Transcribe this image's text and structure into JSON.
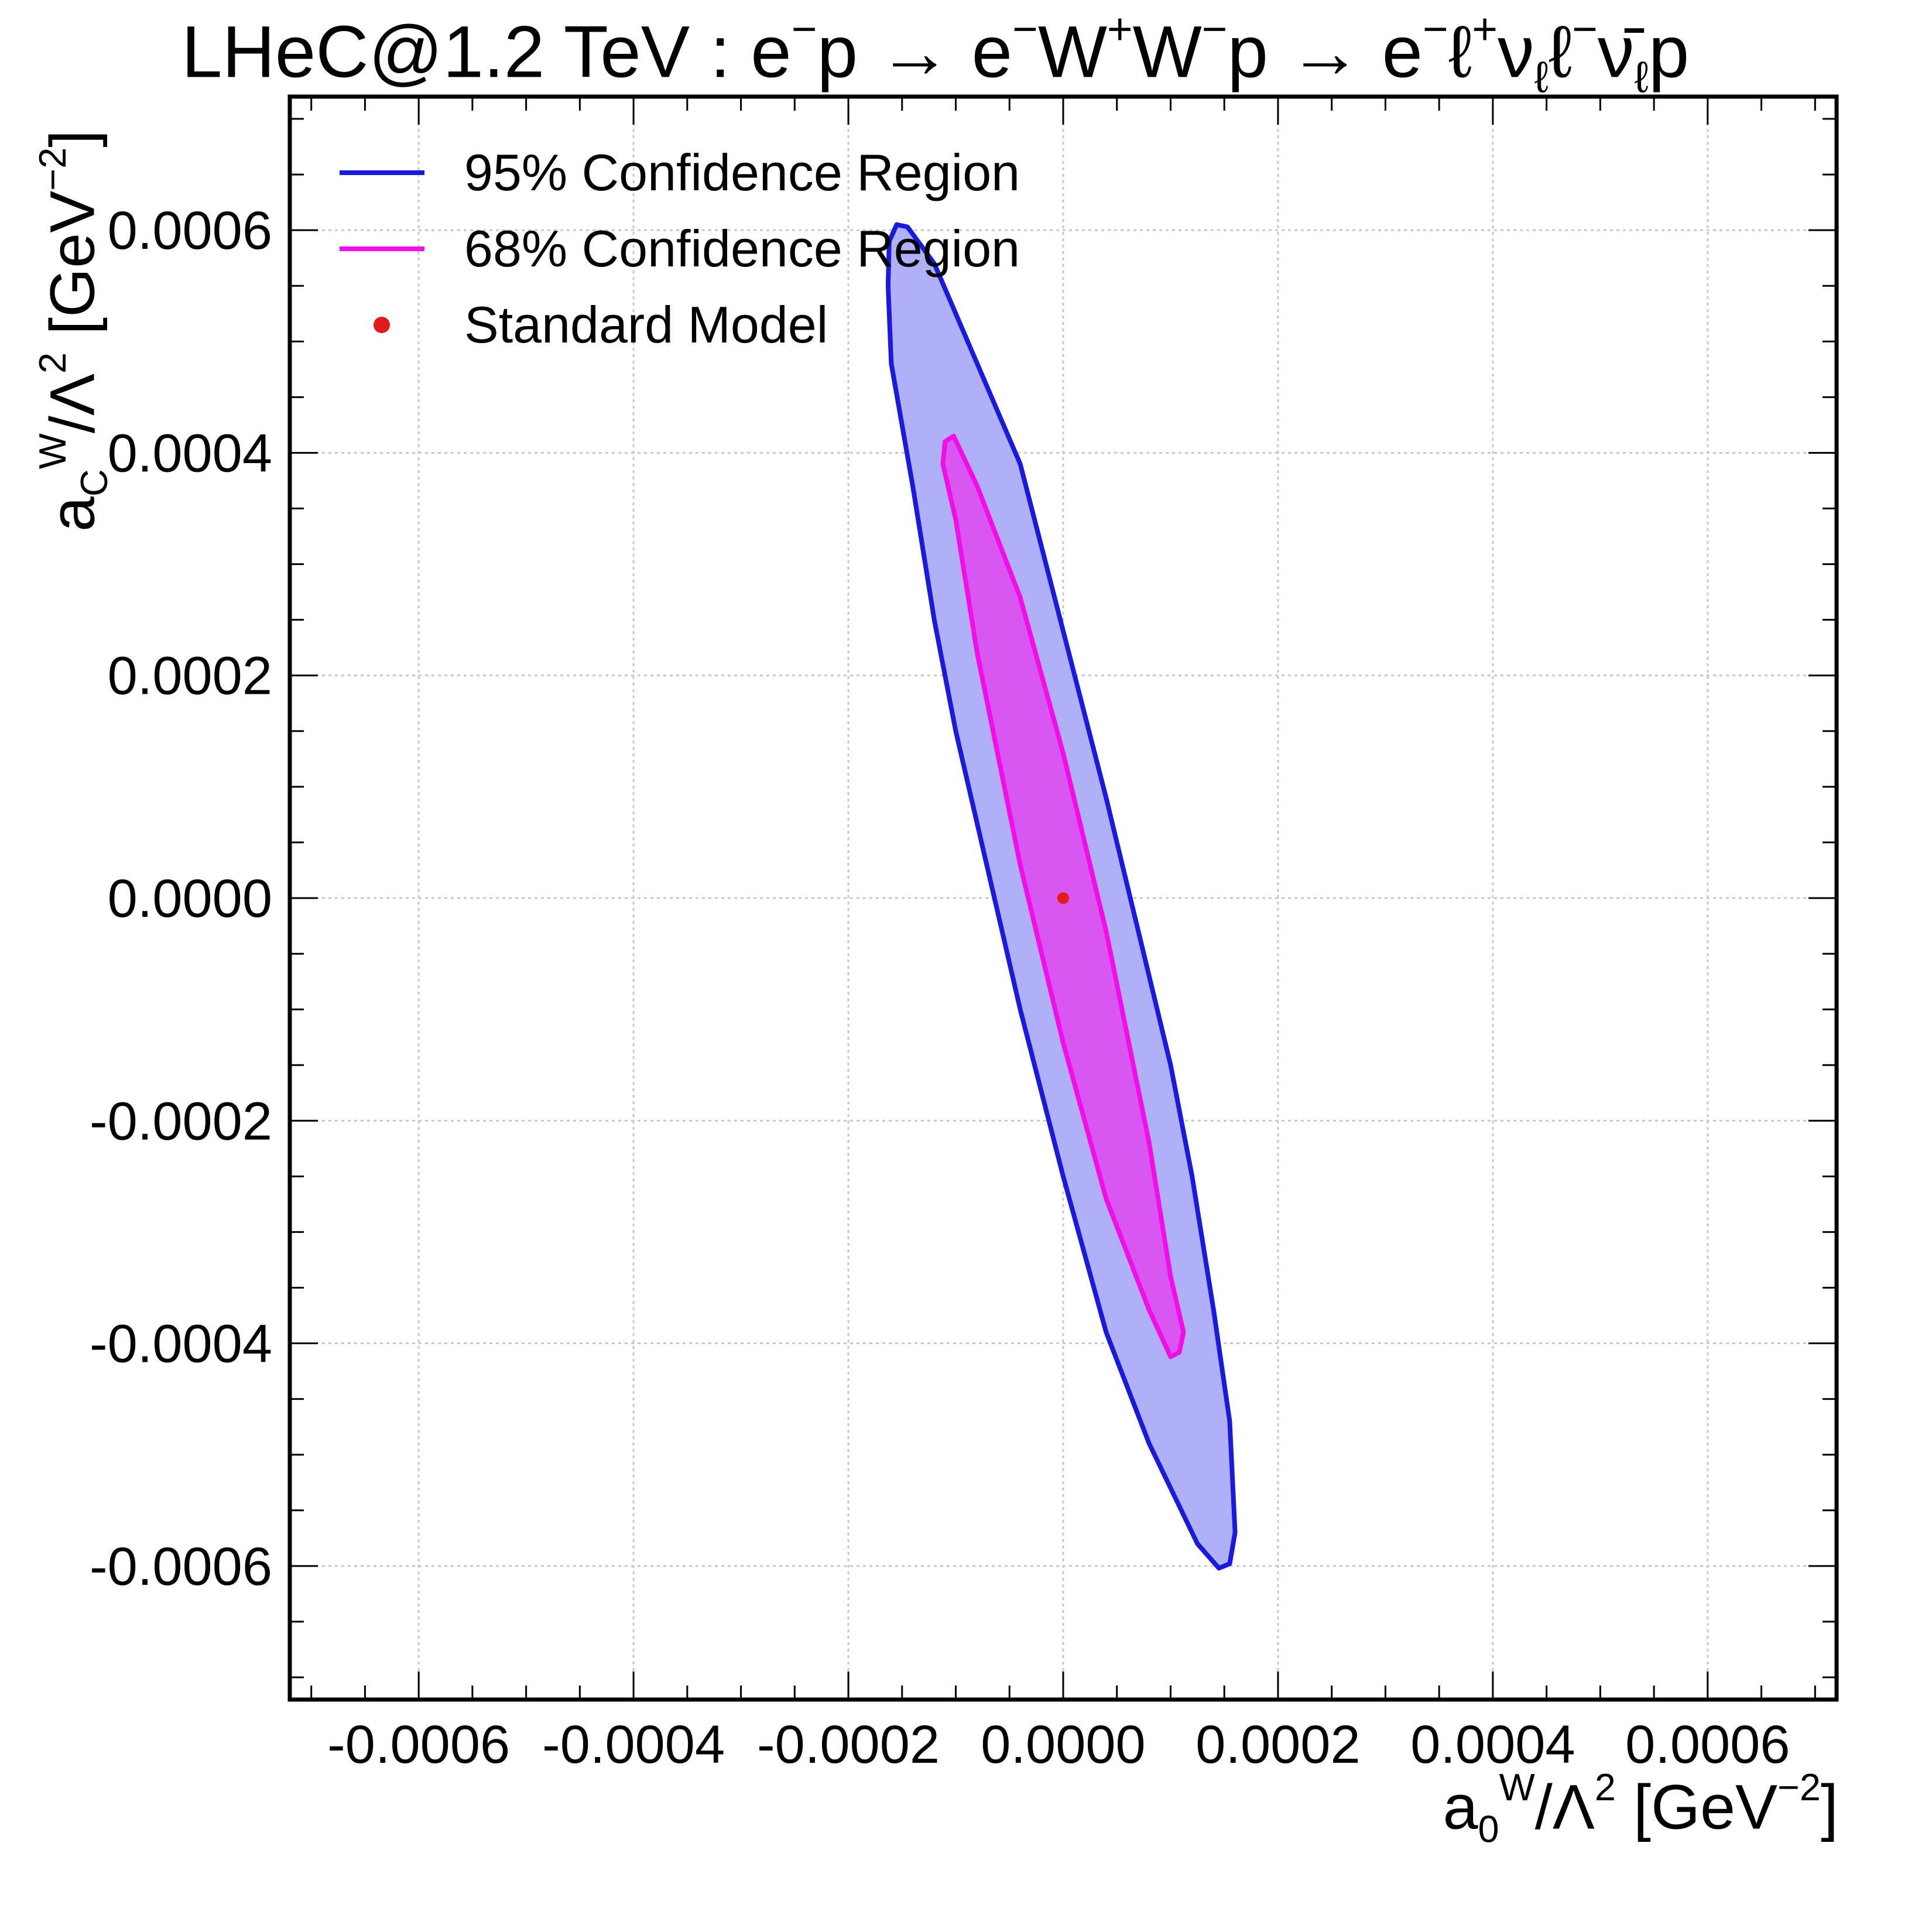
{
  "title": {
    "prefix": "LHeC@1.2 TeV : e",
    "html": "LHeC@1.2 TeV : e<span class=\"sup\">−</span>p → e<span class=\"sup\">−</span>W<span class=\"sup\">+</span>W<span class=\"sup\">−</span>p → e<span class=\"sup\">−</span>ℓ<span class=\"sup\">+</span>ν<span class=\"sub\">ℓ</span>ℓ<span class=\"sup\">−</span>ν̄<span class=\"sub\">ℓ</span>p"
  },
  "axes": {
    "xlabel_html": "a<span class=\"sub\">0</span><span class=\"sup\">W</span>/Λ<span class=\"sup\">2</span> [GeV<span class=\"sup\">−2</span>]",
    "ylabel_html": "a<span class=\"sub\">C</span><span class=\"sup\">W</span>/Λ<span class=\"sup\">2</span> [GeV<span class=\"sup\">−2</span>]"
  },
  "chart_data": {
    "type": "contour",
    "xlim": [
      -0.00072,
      0.00072
    ],
    "ylim": [
      -0.00072,
      0.00072
    ],
    "xticks": [
      -0.0006,
      -0.0004,
      -0.0002,
      0.0,
      0.0002,
      0.0004,
      0.0006
    ],
    "yticks": [
      -0.0006,
      -0.0004,
      -0.0002,
      0.0,
      0.0002,
      0.0004,
      0.0006
    ],
    "xtick_labels": [
      "-0.0006",
      "-0.0004",
      "-0.0002",
      "0.0000",
      "0.0002",
      "0.0004",
      "0.0006"
    ],
    "ytick_labels": [
      "-0.0006",
      "-0.0004",
      "-0.0002",
      "0.0000",
      "0.0002",
      "0.0004",
      "0.0006"
    ],
    "grid": true,
    "legend_position": "top-left",
    "series": [
      {
        "name": "95% Confidence Region",
        "kind": "region",
        "edge_color": "#1a1adb",
        "fill_color": "#b0b0f8",
        "points": [
          [
            -0.000155,
            0.000605
          ],
          [
            -0.000145,
            0.000603
          ],
          [
            -0.00012,
            0.00057
          ],
          [
            -8e-05,
            0.00048
          ],
          [
            -4e-05,
            0.00039
          ],
          [
            0.0,
            0.00024
          ],
          [
            4e-05,
            9e-05
          ],
          [
            0.0001,
            -0.00015
          ],
          [
            0.00012,
            -0.00025
          ],
          [
            0.00014,
            -0.00037
          ],
          [
            0.000155,
            -0.00047
          ],
          [
            0.00016,
            -0.00057
          ],
          [
            0.000155,
            -0.000598
          ],
          [
            0.000145,
            -0.000602
          ],
          [
            0.000125,
            -0.00058
          ],
          [
            8e-05,
            -0.00049
          ],
          [
            4e-05,
            -0.00039
          ],
          [
            0.0,
            -0.00025
          ],
          [
            -4e-05,
            -0.0001
          ],
          [
            -0.0001,
            0.00015
          ],
          [
            -0.00012,
            0.00025
          ],
          [
            -0.00014,
            0.00037
          ],
          [
            -0.00016,
            0.00048
          ],
          [
            -0.000163,
            0.00055
          ],
          [
            -0.000162,
            0.00059
          ]
        ]
      },
      {
        "name": "68% Confidence Region",
        "kind": "region",
        "edge_color": "#f20ee6",
        "fill_color": "#d856f2",
        "points": [
          [
            -0.00011,
            0.00041
          ],
          [
            -0.000102,
            0.000415
          ],
          [
            -8e-05,
            0.00037
          ],
          [
            -4e-05,
            0.00027
          ],
          [
            0.0,
            0.00013
          ],
          [
            4e-05,
            -3e-05
          ],
          [
            8e-05,
            -0.00022
          ],
          [
            0.0001,
            -0.00034
          ],
          [
            0.000112,
            -0.00039
          ],
          [
            0.000108,
            -0.000408
          ],
          [
            0.0001,
            -0.000412
          ],
          [
            8e-05,
            -0.00037
          ],
          [
            4e-05,
            -0.00027
          ],
          [
            0.0,
            -0.00013
          ],
          [
            -4e-05,
            3e-05
          ],
          [
            -8e-05,
            0.00022
          ],
          [
            -0.0001,
            0.00034
          ],
          [
            -0.000112,
            0.00039
          ]
        ]
      },
      {
        "name": "Standard Model",
        "kind": "point",
        "color": "#e31a1a",
        "points": [
          [
            0.0,
            0.0
          ]
        ]
      }
    ]
  }
}
